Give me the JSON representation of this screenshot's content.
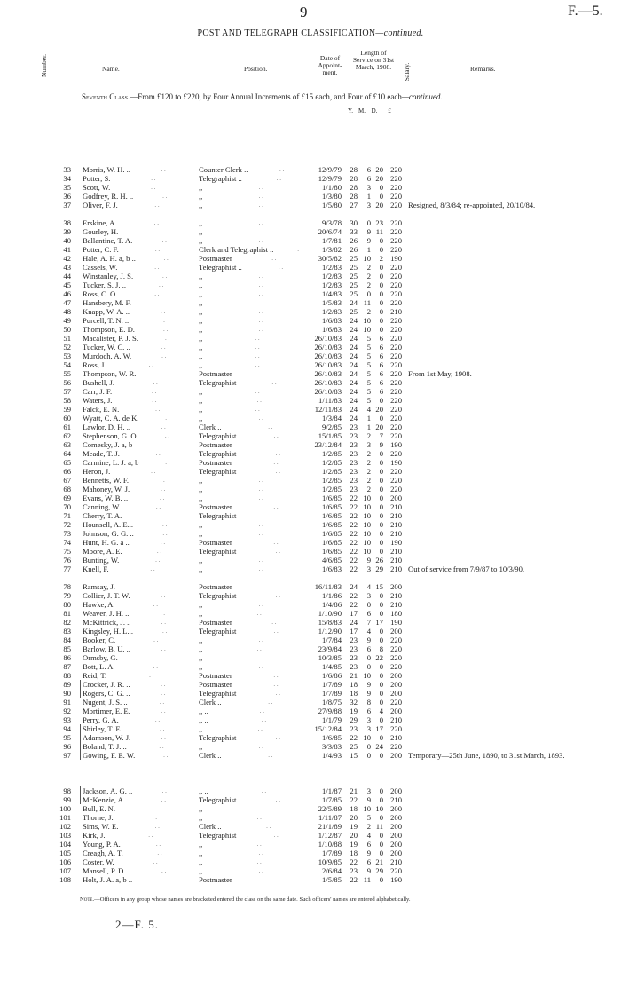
{
  "page_number": "9",
  "page_ref": "F.—5.",
  "title": "POST AND TELEGRAPH CLASSIFICATION",
  "title_suffix": "—continued.",
  "headers": {
    "number": "Number.",
    "name": "Name.",
    "position": "Position.",
    "date": "Date of Appoint-ment.",
    "length": "Length of Service on 31st March, 1908.",
    "salary": "Salary.",
    "remarks": "Remarks."
  },
  "class_heading": {
    "label": "Seventh Class.",
    "text": "—From £120 to £220, by Four Annual Increments of £15 each, and Four of £10 each",
    "suffix": "—continued."
  },
  "units": {
    "y": "Y.",
    "m": "M.",
    "d": "D.",
    "salary": "£"
  },
  "rows": [
    [
      "33",
      "Morris, W. H. ..",
      "Counter Clerk ..",
      "12/9/79",
      "28",
      "6",
      "20",
      "220",
      ""
    ],
    [
      "34",
      "Potter, S.",
      "Telegraphist ..",
      "12/9/79",
      "28",
      "6",
      "20",
      "220",
      ""
    ],
    [
      "35",
      "Scott, W.",
      ",,",
      "1/1/80",
      "28",
      "3",
      "0",
      "220",
      ""
    ],
    [
      "36",
      "Godfrey, R. H. ..",
      ",,",
      "1/3/80",
      "28",
      "1",
      "0",
      "220",
      ""
    ],
    [
      "37",
      "Oliver, F. J.",
      ",,",
      "1/5/80",
      "27",
      "3",
      "20",
      "220",
      "Resigned, 8/3/84; re-appointed, 20/10/84."
    ],
    [
      "38",
      "Erskine, A.",
      ",,",
      "9/3/78",
      "30",
      "0",
      "23",
      "220",
      ""
    ],
    [
      "39",
      "Gourley, H.",
      ",,",
      "20/6/74",
      "33",
      "9",
      "11",
      "220",
      ""
    ],
    [
      "40",
      "Ballantine, T. A.",
      ",,",
      "1/7/81",
      "26",
      "9",
      "0",
      "220",
      ""
    ],
    [
      "41",
      "Potter, C. F.",
      "Clerk and Telegraphist ..",
      "1/3/82",
      "26",
      "1",
      "0",
      "220",
      ""
    ],
    [
      "42",
      "Hale, A. H. a, b ..",
      "Postmaster",
      "30/5/82",
      "25",
      "10",
      "2",
      "190",
      ""
    ],
    [
      "43",
      "Cassels, W.",
      "Telegraphist ..",
      "1/2/83",
      "25",
      "2",
      "0",
      "220",
      ""
    ],
    [
      "44",
      "Winstanley, J. S.",
      ",,",
      "1/2/83",
      "25",
      "2",
      "0",
      "220",
      ""
    ],
    [
      "45",
      "Tucker, S. J. ..",
      ",,",
      "1/2/83",
      "25",
      "2",
      "0",
      "220",
      ""
    ],
    [
      "46",
      "Ross, C. O.",
      ",,",
      "1/4/83",
      "25",
      "0",
      "0",
      "220",
      ""
    ],
    [
      "47",
      "Hansbery, M. F.",
      ",,",
      "1/5/83",
      "24",
      "11",
      "0",
      "220",
      ""
    ],
    [
      "48",
      "Knapp, W. A. ..",
      ",,",
      "1/2/83",
      "25",
      "2",
      "0",
      "210",
      ""
    ],
    [
      "49",
      "Purcell, T. N. ..",
      ",,",
      "1/6/83",
      "24",
      "10",
      "0",
      "220",
      ""
    ],
    [
      "50",
      "Thompson, E. D.",
      ",,",
      "1/6/83",
      "24",
      "10",
      "0",
      "220",
      ""
    ],
    [
      "51",
      "Macalister, P. J. S.",
      ",,",
      "26/10/83",
      "24",
      "5",
      "6",
      "220",
      ""
    ],
    [
      "52",
      "Tucker, W. C. ..",
      ",,",
      "26/10/83",
      "24",
      "5",
      "6",
      "220",
      ""
    ],
    [
      "53",
      "Murdoch, A. W.",
      ",,",
      "26/10/83",
      "24",
      "5",
      "6",
      "220",
      ""
    ],
    [
      "54",
      "Ross, J.",
      ",,",
      "26/10/83",
      "24",
      "5",
      "6",
      "220",
      ""
    ],
    [
      "55",
      "Thompson, W. R.",
      "Postmaster",
      "26/10/83",
      "24",
      "5",
      "6",
      "220",
      "From 1st May, 1908."
    ],
    [
      "56",
      "Bushell, J.",
      "Telegraphist",
      "26/10/83",
      "24",
      "5",
      "6",
      "220",
      ""
    ],
    [
      "57",
      "Carr, J. F.",
      ",,",
      "26/10/83",
      "24",
      "5",
      "6",
      "220",
      ""
    ],
    [
      "58",
      "Waters, J.",
      ",,",
      "1/11/83",
      "24",
      "5",
      "0",
      "220",
      ""
    ],
    [
      "59",
      "Falck, E. N.",
      ",,",
      "12/11/83",
      "24",
      "4",
      "20",
      "220",
      ""
    ],
    [
      "60",
      "Wyatt, C. A. de K.",
      ",,",
      "1/3/84",
      "24",
      "1",
      "0",
      "220",
      ""
    ],
    [
      "61",
      "Lawlor, D. H. ..",
      "Clerk ..",
      "9/2/85",
      "23",
      "1",
      "20",
      "220",
      ""
    ],
    [
      "62",
      "Stephenson, G. O.",
      "Telegraphist",
      "15/1/85",
      "23",
      "2",
      "7",
      "220",
      ""
    ],
    [
      "63",
      "Comesky, J. a, b",
      "Postmaster",
      "23/12/84",
      "23",
      "3",
      "9",
      "190",
      ""
    ],
    [
      "64",
      "Meade, T. J.",
      "Telegraphist",
      "1/2/85",
      "23",
      "2",
      "0",
      "220",
      ""
    ],
    [
      "65",
      "Carmine, L. J. a, b",
      "Postmaster",
      "1/2/85",
      "23",
      "2",
      "0",
      "190",
      ""
    ],
    [
      "66",
      "Heron, J.",
      "Telegraphist",
      "1/2/85",
      "23",
      "2",
      "0",
      "220",
      ""
    ],
    [
      "67",
      "Bennetts, W. F.",
      ",,",
      "1/2/85",
      "23",
      "2",
      "0",
      "220",
      ""
    ],
    [
      "68",
      "Mahoney, W. J.",
      ",,",
      "1/2/85",
      "23",
      "2",
      "0",
      "220",
      ""
    ],
    [
      "69",
      "Evans, W. B. ..",
      ",,",
      "1/6/85",
      "22",
      "10",
      "0",
      "200",
      ""
    ],
    [
      "70",
      "Canning, W.",
      "Postmaster",
      "1/6/85",
      "22",
      "10",
      "0",
      "210",
      ""
    ],
    [
      "71",
      "Cherry, T. A.",
      "Telegraphist",
      "1/6/85",
      "22",
      "10",
      "0",
      "210",
      ""
    ],
    [
      "72",
      "Hounsell, A. E...",
      ",,",
      "1/6/85",
      "22",
      "10",
      "0",
      "210",
      ""
    ],
    [
      "73",
      "Johnson, G. G. ..",
      ",,",
      "1/6/85",
      "22",
      "10",
      "0",
      "210",
      ""
    ],
    [
      "74",
      "Hunt, H. G. a ..",
      "Postmaster",
      "1/6/85",
      "22",
      "10",
      "0",
      "190",
      ""
    ],
    [
      "75",
      "Moore, A. E.",
      "Telegraphist",
      "1/6/85",
      "22",
      "10",
      "0",
      "210",
      ""
    ],
    [
      "76",
      "Bunting, W.",
      ",,",
      "4/6/85",
      "22",
      "9",
      "26",
      "210",
      ""
    ],
    [
      "77",
      "Knell, F.",
      ",,",
      "1/6/83",
      "22",
      "3",
      "29",
      "210",
      "Out of service from 7/9/87 to 10/3/90."
    ],
    [
      "78",
      "Ramsay, J.",
      "Postmaster",
      "16/11/83",
      "24",
      "4",
      "15",
      "200",
      ""
    ],
    [
      "79",
      "Collier, J. T. W.",
      "Telegraphist",
      "1/1/86",
      "22",
      "3",
      "0",
      "210",
      ""
    ],
    [
      "80",
      "Hawke, A.",
      ",,",
      "1/4/86",
      "22",
      "0",
      "0",
      "210",
      ""
    ],
    [
      "81",
      "Weaver, J. H. ..",
      ",,",
      "1/10/90",
      "17",
      "6",
      "0",
      "180",
      ""
    ],
    [
      "82",
      "McKittrick, J. ..",
      "Postmaster",
      "15/8/83",
      "24",
      "7",
      "17",
      "190",
      ""
    ],
    [
      "83",
      "Kingsley, H. L...",
      "Telegraphist",
      "1/12/90",
      "17",
      "4",
      "0",
      "200",
      ""
    ],
    [
      "84",
      "Booker, C.",
      ",,",
      "1/7/84",
      "23",
      "9",
      "0",
      "220",
      ""
    ],
    [
      "85",
      "Barlow, B. U. ..",
      ",,",
      "23/9/84",
      "23",
      "6",
      "8",
      "220",
      ""
    ],
    [
      "86",
      "Ormsby, G.",
      ",,",
      "10/3/85",
      "23",
      "0",
      "22",
      "220",
      ""
    ],
    [
      "87",
      "Bott, L. A.",
      ",,",
      "1/4/85",
      "23",
      "0",
      "0",
      "220",
      ""
    ],
    [
      "88",
      "Reid, T.",
      "Postmaster",
      "1/6/86",
      "21",
      "10",
      "0",
      "200",
      ""
    ],
    [
      "89",
      "Crocker, J. R. ..",
      "Postmaster",
      "1/7/89",
      "18",
      "9",
      "0",
      "200",
      ""
    ],
    [
      "90",
      "Rogers, C. G. ..",
      "Telegraphist",
      "1/7/89",
      "18",
      "9",
      "0",
      "200",
      ""
    ],
    [
      "91",
      "Nugent, J. S. ..",
      "Clerk ..",
      "1/8/75",
      "32",
      "8",
      "0",
      "220",
      ""
    ],
    [
      "92",
      "Mortimer, E. E.",
      ",, ..",
      "27/9/88",
      "19",
      "6",
      "4",
      "200",
      ""
    ],
    [
      "93",
      "Perry, G. A.",
      ",, ..",
      "1/1/79",
      "29",
      "3",
      "0",
      "210",
      ""
    ],
    [
      "94",
      "Shirley, T. E. ..",
      ",, ..",
      "15/12/84",
      "23",
      "3",
      "17",
      "220",
      ""
    ],
    [
      "95",
      "Adamson, W. J.",
      "Telegraphist",
      "1/6/85",
      "22",
      "10",
      "0",
      "210",
      ""
    ],
    [
      "96",
      "Boland, T. J. ..",
      ",,",
      "3/3/83",
      "25",
      "0",
      "24",
      "220",
      ""
    ],
    [
      "97",
      "Gowing, F. E. W.",
      "Clerk ..",
      "1/4/93",
      "15",
      "0",
      "0",
      "200",
      "Temporary—25th June, 1890, to 31st March, 1893."
    ],
    [
      "98",
      "Jackson, A. G. ..",
      ",, ..",
      "1/1/87",
      "21",
      "3",
      "0",
      "200",
      ""
    ],
    [
      "99",
      "McKenzie, A. ..",
      "Telegraphist",
      "1/7/85",
      "22",
      "9",
      "0",
      "210",
      ""
    ],
    [
      "100",
      "Bull, E. N.",
      ",,",
      "22/5/89",
      "18",
      "10",
      "10",
      "200",
      ""
    ],
    [
      "101",
      "Thorne, J.",
      ",,",
      "1/11/87",
      "20",
      "5",
      "0",
      "200",
      ""
    ],
    [
      "102",
      "Sims, W. E.",
      "Clerk ..",
      "21/1/89",
      "19",
      "2",
      "11",
      "200",
      ""
    ],
    [
      "103",
      "Kirk, J.",
      "Telegraphist",
      "1/12/87",
      "20",
      "4",
      "0",
      "200",
      ""
    ],
    [
      "104",
      "Young, P. A.",
      ",,",
      "1/10/88",
      "19",
      "6",
      "0",
      "200",
      ""
    ],
    [
      "105",
      "Creagh, A. T.",
      ",,",
      "1/7/89",
      "18",
      "9",
      "0",
      "200",
      ""
    ],
    [
      "106",
      "Coster, W.",
      ",,",
      "10/9/85",
      "22",
      "6",
      "21",
      "210",
      ""
    ],
    [
      "107",
      "Mansell, P. D. ..",
      ",,",
      "2/6/84",
      "23",
      "9",
      "29",
      "220",
      ""
    ],
    [
      "108",
      "Holt, J. A. a, b ..",
      "Postmaster",
      "1/5/85",
      "22",
      "11",
      "0",
      "190",
      ""
    ]
  ],
  "note": {
    "label": "Note.",
    "text": "—Officers in any group whose names are bracketed entered the class on the same date. Such officers' names are entered alphabetically."
  },
  "footer_signature": "2—F. 5."
}
